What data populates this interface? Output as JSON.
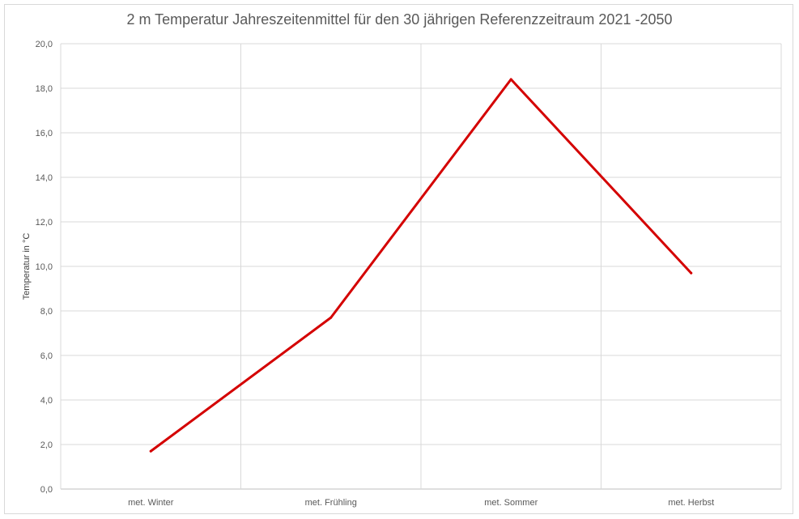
{
  "chart_data": {
    "type": "line",
    "title": "2 m Temperatur Jahreszeitenmittel für den 30 jährigen Referenzzeitraum 2021 -2050",
    "xlabel": "",
    "ylabel": "Temperatur  in °C",
    "categories": [
      "met. Winter",
      "met. Frühling",
      "met. Sommer",
      "met. Herbst"
    ],
    "series": [
      {
        "values": [
          1.7,
          7.7,
          18.4,
          9.7
        ],
        "color": "#d40000"
      }
    ],
    "ylim": [
      0,
      20
    ],
    "yticks": [
      "0,0",
      "2,0",
      "4,0",
      "6,0",
      "8,0",
      "10,0",
      "12,0",
      "14,0",
      "16,0",
      "18,0",
      "20,0"
    ],
    "grid": true,
    "legend": "none"
  }
}
